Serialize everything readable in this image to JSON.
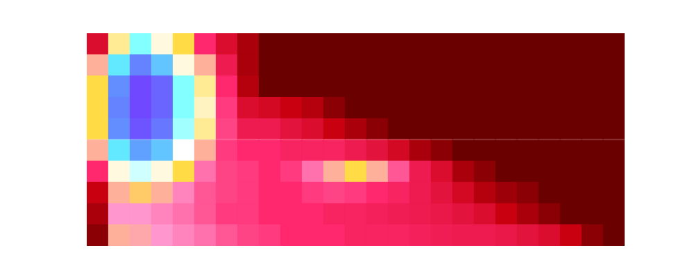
{
  "chart_data": {
    "type": "heatmap",
    "categories": [
      null,
      null,
      null,
      null,
      null,
      null,
      null,
      null,
      null,
      null,
      null,
      null,
      null,
      null,
      null,
      null,
      null,
      null,
      null,
      null,
      null,
      null,
      null,
      null,
      null
    ],
    "y_bins": [
      0,
      1,
      2,
      3,
      4,
      5,
      6,
      7,
      8,
      9,
      10
    ],
    "ylim": [
      0,
      10
    ],
    "color_range": [
      0,
      1
    ],
    "grid": false,
    "tick_labels": false,
    "cells": [
      [
        0.05,
        0.45,
        0.44,
        0.42,
        0.4,
        0.38,
        0.35,
        0.33,
        0.32,
        0.3,
        0.3,
        0.3,
        0.28,
        0.28,
        0.28,
        0.27,
        0.26,
        0.25,
        0.25,
        0.24,
        0.22,
        0.2,
        0.15,
        0.05,
        0
      ],
      [
        0.1,
        0.42,
        0.42,
        0.4,
        0.38,
        0.35,
        0.32,
        0.32,
        0.3,
        0.3,
        0.3,
        0.28,
        0.28,
        0.27,
        0.26,
        0.25,
        0.24,
        0.22,
        0.2,
        0.15,
        0.1,
        0.05,
        0,
        0,
        0
      ],
      [
        0.15,
        0.45,
        0.48,
        0.45,
        0.4,
        0.35,
        0.33,
        0.32,
        0.3,
        0.3,
        0.32,
        0.33,
        0.32,
        0.3,
        0.28,
        0.25,
        0.22,
        0.18,
        0.12,
        0.08,
        0.05,
        0,
        0,
        0,
        0
      ],
      [
        0.3,
        0.6,
        0.65,
        0.6,
        0.5,
        0.38,
        0.33,
        0.32,
        0.3,
        0.32,
        0.38,
        0.45,
        0.5,
        0.45,
        0.35,
        0.25,
        0.2,
        0.1,
        0.05,
        0,
        0,
        0,
        0,
        0,
        0
      ],
      [
        0.45,
        0.75,
        0.85,
        0.8,
        0.62,
        0.45,
        0.32,
        0.3,
        0.3,
        0.28,
        0.28,
        0.28,
        0.25,
        0.22,
        0.18,
        0.1,
        0.05,
        0,
        0,
        0,
        0,
        0,
        0,
        0,
        0
      ],
      [
        0.5,
        0.88,
        0.98,
        0.92,
        0.68,
        0.55,
        0.33,
        0.25,
        0.25,
        0.22,
        0.2,
        0.15,
        0.1,
        0.05,
        0,
        0,
        0,
        0,
        0,
        0,
        0,
        0,
        0,
        0,
        0
      ],
      [
        0.5,
        0.9,
        1.0,
        0.95,
        0.7,
        0.58,
        0.32,
        0.2,
        0.18,
        0.15,
        0.12,
        0.05,
        0,
        0,
        0,
        0,
        0,
        0,
        0,
        0,
        0,
        0,
        0,
        0,
        0
      ],
      [
        0.5,
        0.88,
        1.0,
        0.95,
        0.7,
        0.55,
        0.3,
        0.12,
        0,
        0,
        0,
        0,
        0,
        0,
        0,
        0,
        0,
        0,
        0,
        0,
        0,
        0,
        0,
        0,
        0
      ],
      [
        0.45,
        0.75,
        0.9,
        0.8,
        0.6,
        0.45,
        0.25,
        0.1,
        0,
        0,
        0,
        0,
        0,
        0,
        0,
        0,
        0,
        0,
        0,
        0,
        0,
        0,
        0,
        0,
        0
      ],
      [
        0.2,
        0.55,
        0.7,
        0.6,
        0.5,
        0.3,
        0.2,
        0.1,
        0,
        0,
        0,
        0,
        0,
        0,
        0,
        0,
        0,
        0,
        0,
        0,
        0,
        0,
        0,
        0,
        0
      ]
    ]
  }
}
